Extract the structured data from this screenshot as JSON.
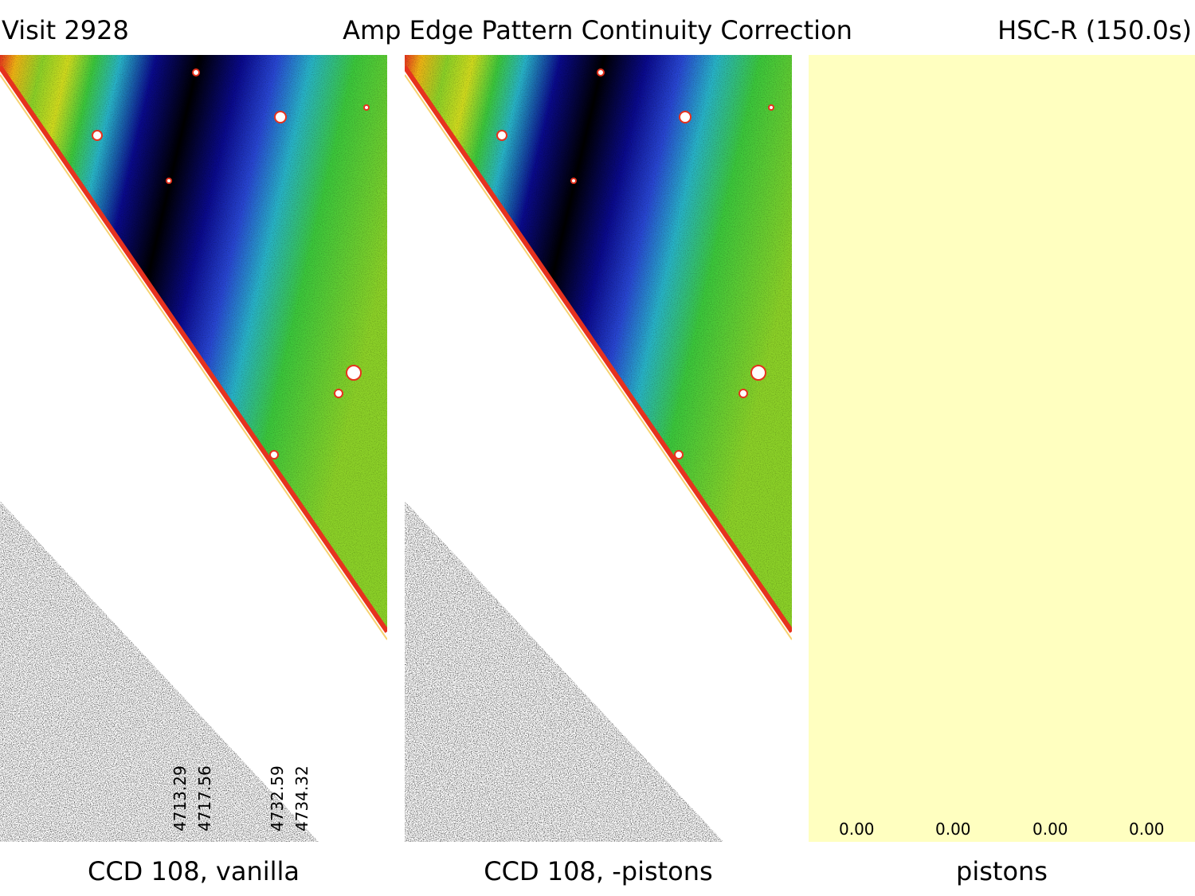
{
  "header": {
    "left": "Visit 2928",
    "center": "Amp Edge Pattern Continuity Correction",
    "right": "HSC-R (150.0s)"
  },
  "panels": [
    {
      "caption": "CCD 108, vanilla",
      "amp_levels": [
        "4713.29",
        "4717.56",
        "4732.59",
        "4734.32"
      ]
    },
    {
      "caption": "CCD 108, -pistons"
    },
    {
      "caption": "pistons",
      "fill_color": "#ffffc0",
      "values": [
        "0.00",
        "0.00",
        "0.00",
        "0.00"
      ]
    }
  ],
  "colormap": [
    "#000000",
    "#0a0a8c",
    "#2846d2",
    "#28b4c8",
    "#3cc83c",
    "#8cd228",
    "#d2dc1e",
    "#f0b414",
    "#e6321e",
    "#ffffff"
  ]
}
